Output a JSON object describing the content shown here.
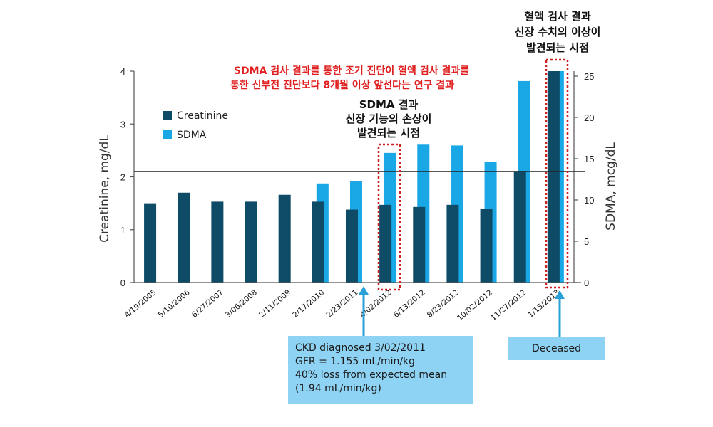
{
  "chart_data": {
    "type": "bar",
    "categories": [
      "4/19/2005",
      "5/10/2006",
      "6/27/2007",
      "3/06/2008",
      "2/11/2009",
      "2/17/2010",
      "2/23/2011",
      "4/02/2012",
      "6/13/2012",
      "8/23/2012",
      "10/02/2012",
      "11/27/2012",
      "1/15/2013"
    ],
    "series": [
      {
        "name": "Creatinine",
        "axis": "left",
        "color": "#0e4b66",
        "values": [
          1.5,
          1.7,
          1.53,
          1.53,
          1.66,
          1.53,
          1.38,
          1.47,
          1.43,
          1.47,
          1.4,
          2.11,
          4.0
        ]
      },
      {
        "name": "SDMA",
        "axis": "right",
        "color": "#1aa7e6",
        "values": [
          null,
          null,
          null,
          null,
          null,
          12.0,
          12.3,
          15.7,
          16.7,
          16.6,
          14.6,
          24.4,
          25.6
        ]
      }
    ],
    "ylabel": "Creatinine, mg/dL",
    "y2label": "SDMA, mcg/dL",
    "ylim": [
      0,
      4
    ],
    "y2lim": [
      0,
      25.6
    ],
    "yticks": [
      "0",
      "1",
      "2",
      "3",
      "4"
    ],
    "y2ticks": [
      "0",
      "5",
      "10",
      "15",
      "20",
      "25"
    ],
    "reference_line": 2.1,
    "legend_position": "top-left",
    "grid": false
  },
  "annotations": {
    "red_note": [
      "SDMA 검사 결과를 통한 조기 진단이 혈액 검사 결과를",
      "통한 신부전 진단보다 8개월 이상 앞선다는 연구 결과"
    ],
    "sdma_note": [
      "SDMA 결과",
      "신장 기능의 손상이",
      "발견되는 시점"
    ],
    "blood_note": [
      "혈액 검사 결과",
      "신장 수치의 이상이",
      "발견되는 시점"
    ]
  },
  "callouts": {
    "ckd": [
      "CKD diagnosed 3/02/2011",
      "GFR = 1.155 mL/min/kg",
      "40% loss from expected mean",
      "(1.94 mL/min/kg)"
    ],
    "deceased": "Deceased"
  },
  "colors": {
    "creatinine": "#0e4b66",
    "sdma": "#1aa7e6",
    "highlight_box": "#cc1f1f",
    "callout_fill": "#8fd3f4",
    "callout_arrow": "#2aa0d8"
  }
}
